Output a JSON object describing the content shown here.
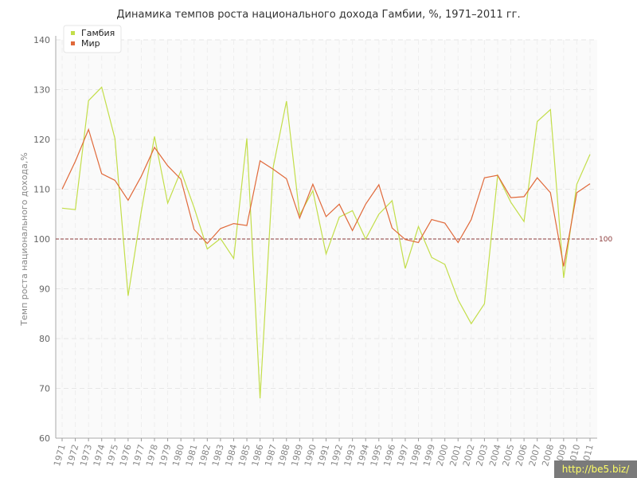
{
  "chart_data": {
    "type": "line",
    "title": "Динамика темпов роста национального дохода Гамбии, %, 1971–2011 гг.",
    "xlabel": "",
    "ylabel": "Темп роста национального дохода,%",
    "ylim": [
      60,
      140
    ],
    "yticks": [
      60,
      70,
      80,
      90,
      100,
      110,
      120,
      130,
      140
    ],
    "grid": true,
    "legend_position": "top-left",
    "x": [
      "1971",
      "1972",
      "1973",
      "1974",
      "1975",
      "1976",
      "1977",
      "1978",
      "1979",
      "1980",
      "1981",
      "1982",
      "1983",
      "1984",
      "1985",
      "1986",
      "1987",
      "1988",
      "1989",
      "1990",
      "1991",
      "1992",
      "1993",
      "1994",
      "1995",
      "1996",
      "1997",
      "1998",
      "1999",
      "2000",
      "2001",
      "2002",
      "2003",
      "2004",
      "2005",
      "2006",
      "2007",
      "2008",
      "2009",
      "2010",
      "2011"
    ],
    "series": [
      {
        "name": "Гамбия",
        "color": "#c3de4a",
        "values": [
          106.2,
          105.9,
          127.8,
          130.5,
          120.2,
          88.6,
          105.5,
          120.6,
          107.2,
          113.7,
          106.3,
          98.0,
          100.1,
          96.1,
          120.2,
          68.0,
          114.5,
          127.7,
          104.8,
          109.7,
          97.0,
          104.4,
          105.7,
          100.0,
          105.0,
          107.7,
          94.1,
          102.5,
          96.3,
          94.9,
          87.8,
          83.0,
          87.0,
          112.8,
          107.4,
          103.5,
          123.6,
          126.0,
          92.2,
          111.0,
          117.0
        ]
      },
      {
        "name": "Мир",
        "color": "#e0693a",
        "values": [
          110.0,
          115.6,
          122.0,
          113.1,
          111.8,
          107.8,
          112.6,
          118.4,
          114.7,
          112.0,
          101.9,
          99.1,
          102.1,
          103.1,
          102.7,
          115.7,
          114.0,
          112.1,
          104.2,
          111.0,
          104.5,
          107.0,
          101.7,
          107.0,
          110.9,
          102.2,
          99.9,
          99.3,
          103.9,
          103.2,
          99.3,
          103.9,
          112.3,
          112.8,
          108.3,
          108.5,
          112.3,
          109.3,
          94.5,
          109.3,
          111.1
        ]
      }
    ],
    "reference_line": {
      "value": 100,
      "label": "100",
      "color": "#8b3a3a"
    }
  },
  "watermark": "http://be5.biz/"
}
